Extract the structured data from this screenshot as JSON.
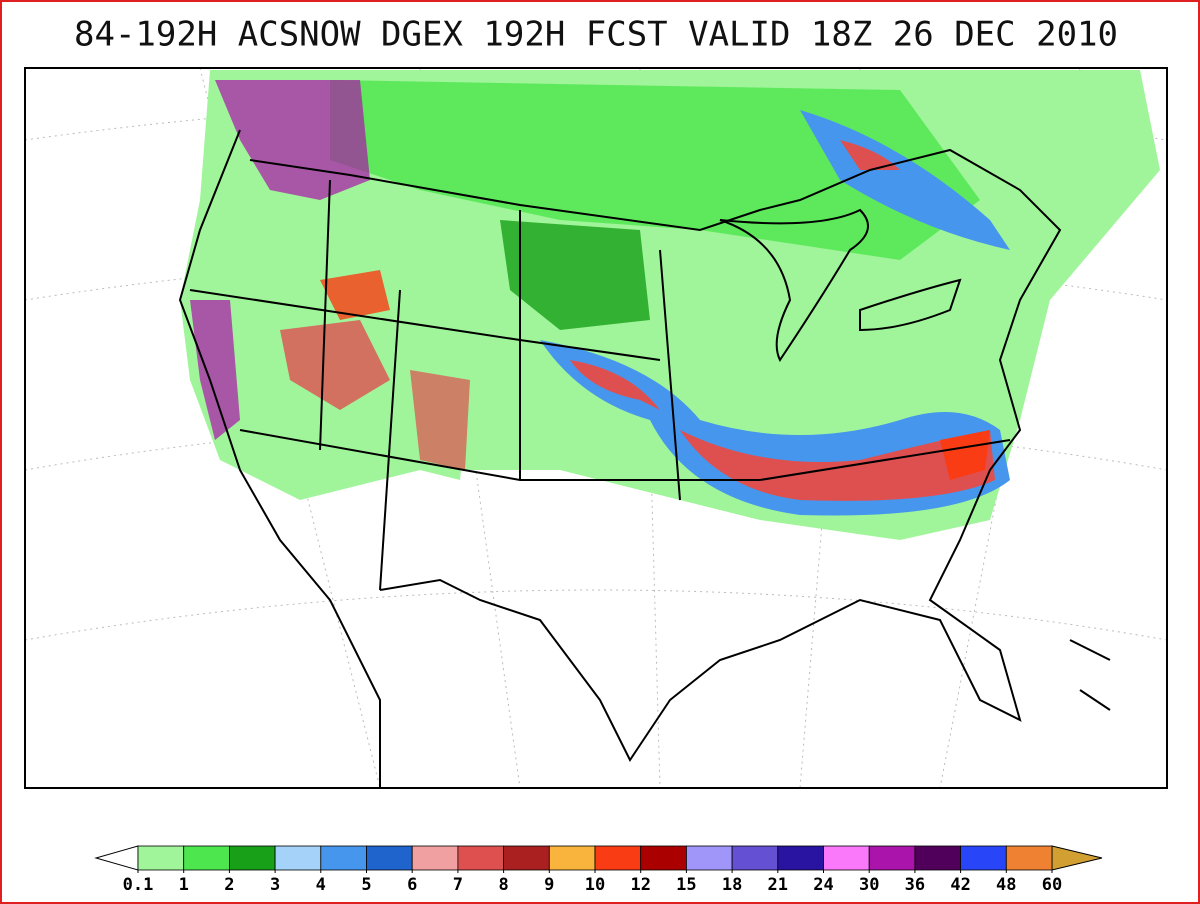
{
  "title": "84-192H ACSNOW DGEX 192H FCST VALID 18Z 26 DEC 2010",
  "colorbar": {
    "levels": [
      0.1,
      1,
      2,
      3,
      4,
      5,
      6,
      7,
      8,
      9,
      10,
      12,
      15,
      18,
      21,
      24,
      30,
      36,
      42,
      48,
      60
    ],
    "colors": [
      "#a0f59a",
      "#4ee64e",
      "#18a018",
      "#a4d2f8",
      "#4696ee",
      "#1e64cc",
      "#f0a0a0",
      "#de5050",
      "#aa2020",
      "#f8b43c",
      "#fa3c14",
      "#aa0000",
      "#a096fa",
      "#6450d2",
      "#2814a0",
      "#fa78fa",
      "#aa14aa",
      "#50005a",
      "#2846f8",
      "#ee8232"
    ],
    "under_color": "#ffffff",
    "over_color": "#d2a032"
  }
}
